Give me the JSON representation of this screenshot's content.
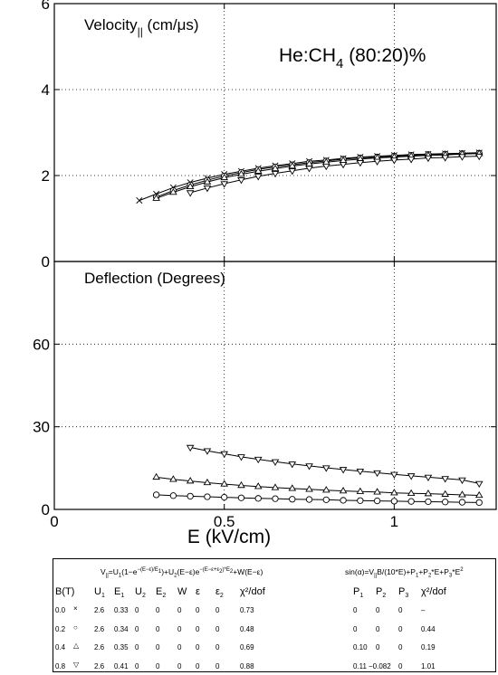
{
  "chart_data": [
    {
      "type": "line",
      "title": "Velocity|| (cm/μs)",
      "title_main": "Velocity",
      "title_sub": "||",
      "title_unit": " (cm/μs)",
      "annotation_main": "He:CH",
      "annotation_sub": "4",
      "annotation_rest": " (80:20)%",
      "xlim": [
        0,
        1.3
      ],
      "ylim": [
        0,
        6
      ],
      "yticks": [
        "0",
        "2",
        "4",
        "6"
      ],
      "grid": "dotted",
      "series": [
        {
          "name": "0.0",
          "marker": "x",
          "x": [
            0.25,
            0.3,
            0.35,
            0.4,
            0.45,
            0.5,
            0.55,
            0.6,
            0.65,
            0.7,
            0.75,
            0.8,
            0.85,
            0.9,
            0.95,
            1.0,
            1.05,
            1.1,
            1.15,
            1.2,
            1.25
          ],
          "y": [
            1.42,
            1.57,
            1.72,
            1.84,
            1.94,
            2.03,
            2.1,
            2.17,
            2.23,
            2.28,
            2.33,
            2.36,
            2.4,
            2.43,
            2.45,
            2.47,
            2.49,
            2.5,
            2.51,
            2.52,
            2.53
          ]
        },
        {
          "name": "0.2",
          "marker": "circle",
          "x": [
            0.3,
            0.35,
            0.4,
            0.45,
            0.5,
            0.55,
            0.6,
            0.65,
            0.7,
            0.75,
            0.8,
            0.85,
            0.9,
            0.95,
            1.0,
            1.05,
            1.1,
            1.15,
            1.2,
            1.25
          ],
          "y": [
            1.5,
            1.65,
            1.78,
            1.89,
            1.99,
            2.07,
            2.14,
            2.2,
            2.25,
            2.3,
            2.34,
            2.38,
            2.41,
            2.43,
            2.45,
            2.47,
            2.49,
            2.5,
            2.51,
            2.52
          ]
        },
        {
          "name": "0.4",
          "marker": "triangle-up",
          "x": [
            0.3,
            0.35,
            0.4,
            0.45,
            0.5,
            0.55,
            0.6,
            0.65,
            0.7,
            0.75,
            0.8,
            0.85,
            0.9,
            0.95,
            1.0,
            1.05,
            1.1,
            1.15,
            1.2,
            1.25
          ],
          "y": [
            1.47,
            1.61,
            1.74,
            1.85,
            1.95,
            2.03,
            2.1,
            2.16,
            2.22,
            2.27,
            2.31,
            2.35,
            2.38,
            2.41,
            2.43,
            2.45,
            2.47,
            2.48,
            2.5,
            2.51
          ]
        },
        {
          "name": "0.8",
          "marker": "triangle-down",
          "x": [
            0.4,
            0.45,
            0.5,
            0.55,
            0.6,
            0.65,
            0.7,
            0.75,
            0.8,
            0.85,
            0.9,
            0.95,
            1.0,
            1.05,
            1.1,
            1.15,
            1.2,
            1.25
          ],
          "y": [
            1.6,
            1.71,
            1.81,
            1.9,
            1.98,
            2.05,
            2.11,
            2.17,
            2.22,
            2.26,
            2.3,
            2.33,
            2.36,
            2.38,
            2.41,
            2.42,
            2.44,
            2.45
          ]
        }
      ]
    },
    {
      "type": "line",
      "title": "Deflection (Degrees)",
      "xlabel": "E (kV/cm)",
      "xlim": [
        0,
        1.3
      ],
      "ylim": [
        0,
        90
      ],
      "xticks": [
        "0",
        "0.5",
        "1"
      ],
      "yticks": [
        "0",
        "30",
        "60"
      ],
      "grid": "dotted",
      "series": [
        {
          "name": "0.2",
          "marker": "circle",
          "x": [
            0.3,
            0.35,
            0.4,
            0.45,
            0.5,
            0.55,
            0.6,
            0.65,
            0.7,
            0.75,
            0.8,
            0.85,
            0.9,
            0.95,
            1.0,
            1.05,
            1.1,
            1.15,
            1.2,
            1.25
          ],
          "y": [
            5.3,
            5.0,
            4.8,
            4.6,
            4.4,
            4.2,
            4.0,
            3.9,
            3.7,
            3.6,
            3.5,
            3.3,
            3.2,
            3.1,
            3.0,
            2.9,
            2.8,
            2.7,
            2.6,
            2.5
          ]
        },
        {
          "name": "0.4",
          "marker": "triangle-up",
          "x": [
            0.3,
            0.35,
            0.4,
            0.45,
            0.5,
            0.55,
            0.6,
            0.65,
            0.7,
            0.75,
            0.8,
            0.85,
            0.9,
            0.95,
            1.0,
            1.05,
            1.1,
            1.15,
            1.2,
            1.25
          ],
          "y": [
            11.7,
            10.9,
            10.3,
            9.7,
            9.2,
            8.7,
            8.3,
            7.9,
            7.6,
            7.3,
            7.0,
            6.7,
            6.5,
            6.3,
            6.0,
            5.8,
            5.7,
            5.5,
            5.3,
            5.1
          ]
        },
        {
          "name": "0.8",
          "marker": "triangle-down",
          "x": [
            0.4,
            0.45,
            0.5,
            0.55,
            0.6,
            0.65,
            0.7,
            0.75,
            0.8,
            0.85,
            0.9,
            0.95,
            1.0,
            1.05,
            1.1,
            1.15,
            1.2,
            1.25
          ],
          "y": [
            22.5,
            21.3,
            20.2,
            19.1,
            18.2,
            17.3,
            16.5,
            15.8,
            15.1,
            14.5,
            13.9,
            13.3,
            12.7,
            12.2,
            11.7,
            11.2,
            10.7,
            9.4
          ]
        }
      ]
    }
  ],
  "table": {
    "formula_left_text": "V||=U1(1−e^−(E−ε)/E1)+U2(E−ε)e^−(E−ε+ε2)*E2+W(E−ε)",
    "formula_right_text": "sin(α)=V||B/(10*E)+P1+P2*E+P3*E²",
    "left_headers": [
      "B(T)",
      "U1",
      "E1",
      "U2",
      "E2",
      "W",
      "ε",
      "ε2",
      "χ²/dof"
    ],
    "right_headers": [
      "P1",
      "P2",
      "P3",
      "χ²/dof"
    ],
    "rows": [
      {
        "b": "0.0",
        "marker": "×",
        "left": [
          "2.6",
          "0.33",
          "0",
          "0",
          "0",
          "0",
          "0",
          "0.73"
        ],
        "right": [
          "0",
          "0",
          "0",
          "–"
        ]
      },
      {
        "b": "0.2",
        "marker": "○",
        "left": [
          "2.6",
          "0.34",
          "0",
          "0",
          "0",
          "0",
          "0",
          "0.48"
        ],
        "right": [
          "0",
          "0",
          "0",
          "0.44"
        ]
      },
      {
        "b": "0.4",
        "marker": "△",
        "left": [
          "2.6",
          "0.35",
          "0",
          "0",
          "0",
          "0",
          "0",
          "0.69"
        ],
        "right": [
          "0.10",
          "0",
          "0",
          "0.19"
        ]
      },
      {
        "b": "0.8",
        "marker": "▽",
        "left": [
          "2.6",
          "0.41",
          "0",
          "0",
          "0",
          "0",
          "0",
          "0.88"
        ],
        "right": [
          "0.11",
          "−0.082",
          "0",
          "1.01"
        ]
      }
    ]
  }
}
